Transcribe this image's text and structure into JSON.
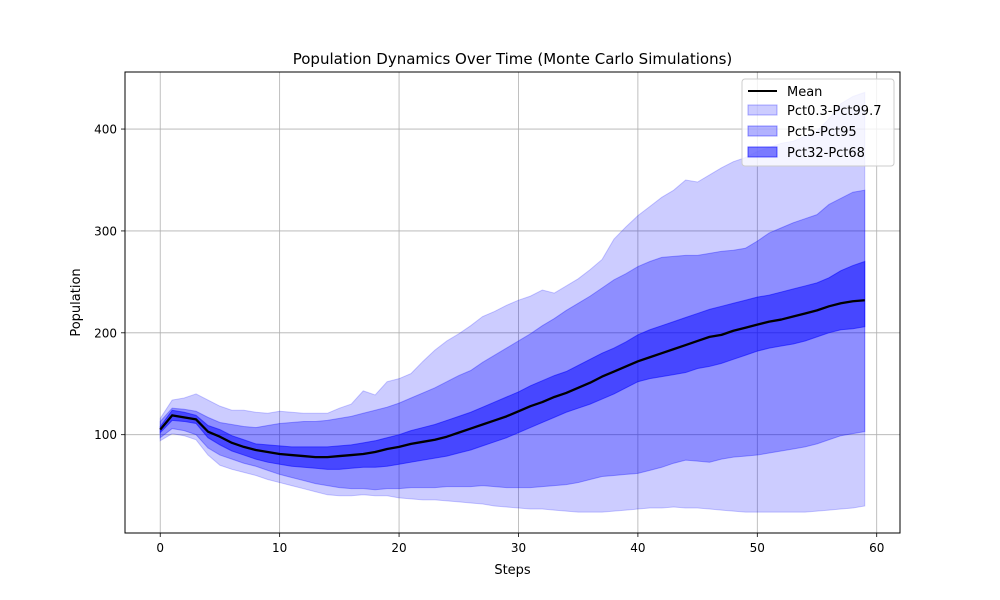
{
  "chart_data": {
    "type": "area",
    "title": "Population Dynamics Over Time (Monte Carlo Simulations)",
    "xlabel": "Steps",
    "ylabel": "Population",
    "xlim": [
      -2.95,
      61.95
    ],
    "ylim": [
      3.5,
      456
    ],
    "xticks": [
      0,
      10,
      20,
      30,
      40,
      50,
      60
    ],
    "yticks": [
      100,
      200,
      300,
      400
    ],
    "grid": true,
    "legend_position": "upper-right",
    "x": [
      0,
      1,
      2,
      3,
      4,
      5,
      6,
      7,
      8,
      9,
      10,
      11,
      12,
      13,
      14,
      15,
      16,
      17,
      18,
      19,
      20,
      21,
      22,
      23,
      24,
      25,
      26,
      27,
      28,
      29,
      30,
      31,
      32,
      33,
      34,
      35,
      36,
      37,
      38,
      39,
      40,
      41,
      42,
      43,
      44,
      45,
      46,
      47,
      48,
      49,
      50,
      51,
      52,
      53,
      54,
      55,
      56,
      57,
      58,
      59
    ],
    "mean": {
      "name": "Mean",
      "color": "#000000",
      "values": [
        105,
        119,
        117,
        115,
        103,
        98,
        92,
        88,
        85,
        83,
        81,
        80,
        79,
        78,
        78,
        79,
        80,
        81,
        83,
        86,
        88,
        91,
        93,
        95,
        98,
        102,
        106,
        110,
        114,
        118,
        123,
        128,
        132,
        137,
        141,
        146,
        151,
        157,
        162,
        167,
        172,
        176,
        180,
        184,
        188,
        192,
        196,
        198,
        202,
        205,
        208,
        211,
        213,
        216,
        219,
        222,
        226,
        229,
        231,
        232
      ]
    },
    "bands": [
      {
        "name": "Pct0.3-Pct99.7",
        "color": "#0000ff",
        "opacity": 0.2,
        "lower": [
          94,
          101,
          99,
          95,
          80,
          70,
          66,
          63,
          60,
          56,
          53,
          50,
          47,
          44,
          41,
          40,
          40,
          41,
          40,
          40,
          38,
          37,
          36,
          36,
          35,
          34,
          33,
          32,
          30,
          29,
          28,
          27,
          27,
          26,
          25,
          24,
          24,
          24,
          25,
          26,
          27,
          28,
          28,
          29,
          28,
          28,
          27,
          26,
          25,
          24,
          24,
          24,
          24,
          24,
          24,
          25,
          26,
          27,
          28,
          30
        ],
        "upper": [
          116,
          134,
          136,
          140,
          134,
          128,
          124,
          124,
          122,
          121,
          123,
          122,
          121,
          121,
          121,
          126,
          130,
          143,
          139,
          152,
          155,
          160,
          172,
          183,
          192,
          199,
          207,
          216,
          221,
          227,
          232,
          236,
          242,
          239,
          246,
          253,
          262,
          272,
          292,
          304,
          315,
          324,
          333,
          340,
          350,
          348,
          355,
          362,
          368,
          372,
          378,
          382,
          386,
          388,
          393,
          398,
          410,
          425,
          432,
          436
        ]
      },
      {
        "name": "Pct5-Pct95",
        "color": "#0000ff",
        "opacity": 0.3,
        "lower": [
          97,
          106,
          104,
          100,
          87,
          80,
          76,
          72,
          69,
          65,
          61,
          58,
          55,
          52,
          50,
          48,
          47,
          47,
          46,
          47,
          47,
          48,
          48,
          48,
          49,
          49,
          49,
          50,
          49,
          48,
          48,
          48,
          49,
          50,
          51,
          53,
          56,
          59,
          60,
          61,
          62,
          65,
          68,
          72,
          75,
          74,
          73,
          76,
          78,
          79,
          80,
          82,
          84,
          86,
          88,
          91,
          95,
          99,
          101,
          103
        ],
        "upper": [
          113,
          126,
          125,
          123,
          117,
          112,
          110,
          108,
          107,
          109,
          111,
          112,
          113,
          113,
          114,
          116,
          118,
          121,
          124,
          127,
          131,
          136,
          141,
          146,
          152,
          158,
          163,
          171,
          178,
          185,
          192,
          199,
          207,
          214,
          222,
          229,
          236,
          244,
          252,
          258,
          265,
          270,
          274,
          275,
          276,
          276,
          278,
          280,
          281,
          283,
          290,
          298,
          303,
          308,
          312,
          316,
          326,
          332,
          338,
          340
        ]
      },
      {
        "name": "Pct32-Pct68",
        "color": "#0000ff",
        "opacity": 0.5,
        "lower": [
          102,
          114,
          113,
          111,
          97,
          90,
          84,
          80,
          76,
          73,
          71,
          69,
          68,
          67,
          66,
          66,
          67,
          68,
          68,
          69,
          71,
          73,
          75,
          77,
          79,
          82,
          85,
          89,
          93,
          97,
          102,
          107,
          112,
          117,
          122,
          126,
          130,
          135,
          140,
          146,
          152,
          155,
          157,
          159,
          161,
          165,
          167,
          170,
          174,
          178,
          182,
          185,
          187,
          189,
          192,
          196,
          200,
          203,
          204,
          206
        ],
        "upper": [
          108,
          124,
          122,
          119,
          109,
          105,
          99,
          95,
          91,
          90,
          89,
          88,
          88,
          88,
          88,
          89,
          90,
          92,
          94,
          97,
          100,
          104,
          107,
          110,
          114,
          118,
          122,
          127,
          132,
          137,
          142,
          148,
          153,
          158,
          162,
          168,
          174,
          180,
          185,
          191,
          198,
          203,
          207,
          211,
          215,
          219,
          223,
          226,
          229,
          232,
          235,
          237,
          240,
          243,
          246,
          249,
          254,
          261,
          266,
          270
        ]
      }
    ]
  }
}
